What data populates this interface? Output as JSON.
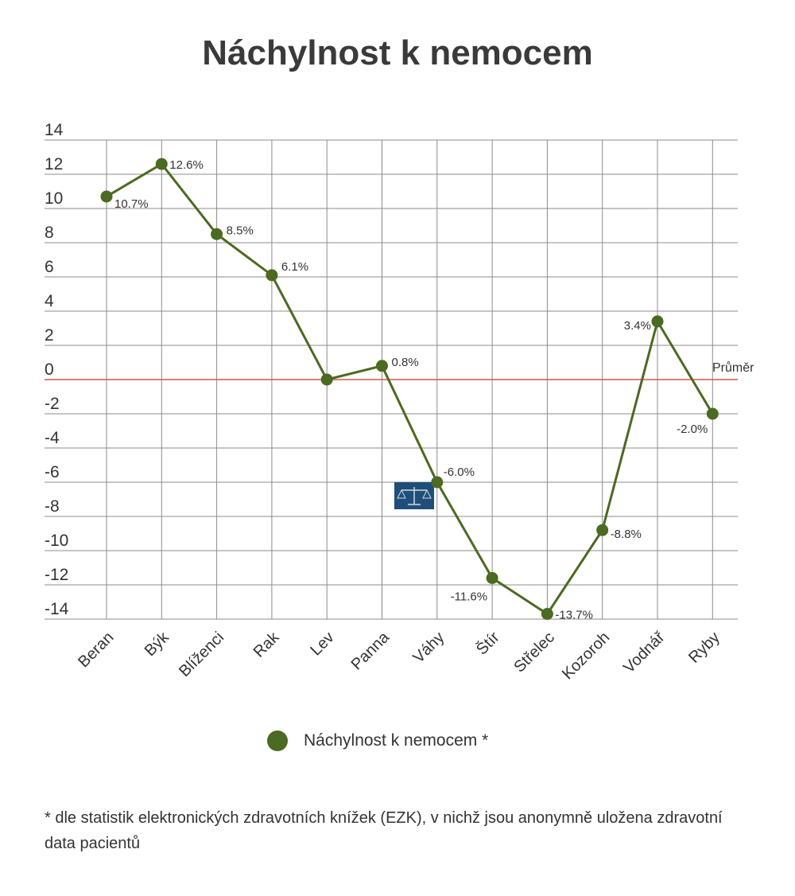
{
  "chart_data": {
    "type": "line",
    "title": "Náchylnost k nemocem",
    "categories": [
      "Beran",
      "Býk",
      "Blíženci",
      "Rak",
      "Lev",
      "Panna",
      "Váhy",
      "Štír",
      "Střelec",
      "Kozoroh",
      "Vodnář",
      "Ryby"
    ],
    "series": [
      {
        "name": "Náchylnost k nemocem *",
        "values": [
          10.7,
          12.6,
          8.5,
          6.1,
          0.0,
          0.8,
          -6.0,
          -11.6,
          -13.7,
          -8.8,
          3.4,
          -2.0
        ],
        "labels": [
          "10.7%",
          "12.6%",
          "8.5%",
          "6.1%",
          "",
          "0.8%",
          "-6.0%",
          "-11.6%",
          "-13.7%",
          "-8.8%",
          "3.4%",
          "-2.0%"
        ]
      }
    ],
    "ylim": [
      -14,
      14
    ],
    "yticks": [
      14,
      12,
      10,
      8,
      6,
      4,
      2,
      0,
      -2,
      -4,
      -6,
      -8,
      -10,
      -12,
      -14
    ],
    "reference_line": {
      "value": 0,
      "label": "Průměr",
      "color": "#d9534f"
    },
    "grid": true,
    "legend_position": "bottom",
    "series_color": "#4b6a22",
    "annotation_icon": "libra-scales-icon"
  },
  "footnote": "* dle statistik elektronických zdravotních knížek (EZK), v nichž jsou anonymně uložena zdravotní data pacientů"
}
